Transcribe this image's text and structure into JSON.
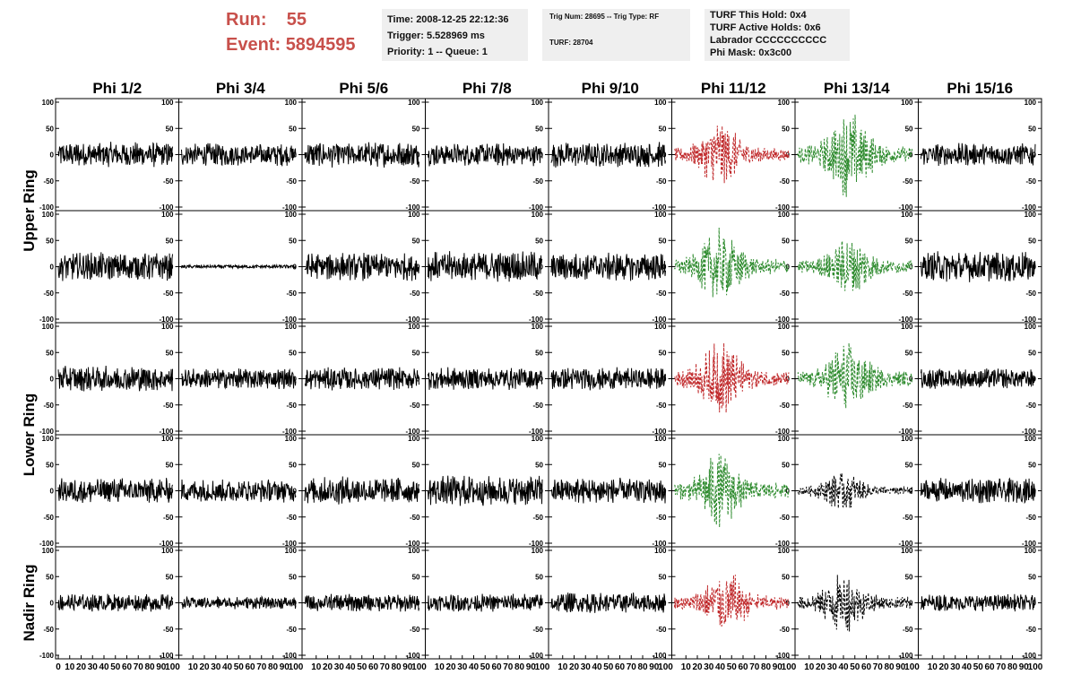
{
  "header": {
    "run_label": "Run:",
    "run_value": "55",
    "event_label": "Event:",
    "event_value": "5894595",
    "time": "Time: 2008-12-25 22:12:36",
    "trigger": "Trigger: 5.528969 ms",
    "priority": "Priority: 1 -- Queue: 1",
    "trig_num": "Trig Num: 28695 -- Trig Type: RF",
    "turf": "TURF: 28704",
    "turf_this_hold": "TURF This Hold: 0x4",
    "turf_active_holds": "TURF Active Holds: 0x6",
    "labrador": "Labrador CCCCCCCCCC",
    "phi_mask": "Phi Mask: 0x3c00"
  },
  "colors": {
    "header_text": "#c8504b",
    "panel_bg": "#efefef",
    "trace_default": "#000000",
    "trace_red": "#c0282a",
    "trace_green": "#2e8b2e"
  },
  "chart_data": {
    "type": "line",
    "columns": [
      "Phi 1/2",
      "Phi 3/4",
      "Phi 5/6",
      "Phi 7/8",
      "Phi 9/10",
      "Phi 11/12",
      "Phi 13/14",
      "Phi 15/16"
    ],
    "rows": [
      "Upper Ring",
      "Lower Ring",
      "Nadir Ring"
    ],
    "ylim": [
      -100,
      100
    ],
    "xlim": [
      0,
      100
    ],
    "yticks": [
      "100",
      "50",
      "0",
      "-50",
      "-100"
    ],
    "xticks": [
      "0",
      "10",
      "20",
      "30",
      "40",
      "50",
      "60",
      "70",
      "80",
      "90",
      "100"
    ],
    "panels": [
      {
        "row": 0,
        "col": 0,
        "color": "black",
        "amp": 20
      },
      {
        "row": 0,
        "col": 1,
        "color": "black",
        "amp": 18
      },
      {
        "row": 0,
        "col": 2,
        "color": "black",
        "amp": 20
      },
      {
        "row": 0,
        "col": 3,
        "color": "black",
        "amp": 18
      },
      {
        "row": 0,
        "col": 4,
        "color": "black",
        "amp": 20
      },
      {
        "row": 0,
        "col": 5,
        "color": "red",
        "amp": 30,
        "dashed": true,
        "burst": 40
      },
      {
        "row": 0,
        "col": 6,
        "color": "green",
        "amp": 40,
        "dashed": true,
        "burst": 45
      },
      {
        "row": 0,
        "col": 7,
        "color": "black",
        "amp": 18
      },
      {
        "row": 1,
        "col": 0,
        "color": "black",
        "amp": 22
      },
      {
        "row": 1,
        "col": 1,
        "color": "black",
        "amp": 3
      },
      {
        "row": 1,
        "col": 2,
        "color": "black",
        "amp": 22
      },
      {
        "row": 1,
        "col": 3,
        "color": "black",
        "amp": 24
      },
      {
        "row": 1,
        "col": 4,
        "color": "black",
        "amp": 22
      },
      {
        "row": 1,
        "col": 5,
        "color": "green",
        "amp": 35,
        "dashed": true,
        "burst": 40
      },
      {
        "row": 1,
        "col": 6,
        "color": "green",
        "amp": 28,
        "dashed": true,
        "burst": 45
      },
      {
        "row": 1,
        "col": 7,
        "color": "black",
        "amp": 24
      },
      {
        "row": 2,
        "col": 0,
        "color": "black",
        "amp": 20
      },
      {
        "row": 2,
        "col": 1,
        "color": "black",
        "amp": 16
      },
      {
        "row": 2,
        "col": 2,
        "color": "black",
        "amp": 18
      },
      {
        "row": 2,
        "col": 3,
        "color": "black",
        "amp": 18
      },
      {
        "row": 2,
        "col": 4,
        "color": "black",
        "amp": 18
      },
      {
        "row": 2,
        "col": 5,
        "color": "red",
        "amp": 35,
        "dashed": true,
        "burst": 40
      },
      {
        "row": 2,
        "col": 6,
        "color": "green",
        "amp": 35,
        "dashed": true,
        "burst": 45
      },
      {
        "row": 2,
        "col": 7,
        "color": "black",
        "amp": 16
      },
      {
        "row": 3,
        "col": 0,
        "color": "black",
        "amp": 20
      },
      {
        "row": 3,
        "col": 1,
        "color": "black",
        "amp": 18
      },
      {
        "row": 3,
        "col": 2,
        "color": "black",
        "amp": 22
      },
      {
        "row": 3,
        "col": 3,
        "color": "black",
        "amp": 24
      },
      {
        "row": 3,
        "col": 4,
        "color": "black",
        "amp": 20
      },
      {
        "row": 3,
        "col": 5,
        "color": "green",
        "amp": 35,
        "dashed": true,
        "burst": 40
      },
      {
        "row": 3,
        "col": 6,
        "color": "black",
        "amp": 18,
        "dashed": true,
        "burst": 40
      },
      {
        "row": 3,
        "col": 7,
        "color": "black",
        "amp": 20
      },
      {
        "row": 4,
        "col": 0,
        "color": "black",
        "amp": 14
      },
      {
        "row": 4,
        "col": 1,
        "color": "black",
        "amp": 10
      },
      {
        "row": 4,
        "col": 2,
        "color": "black",
        "amp": 14
      },
      {
        "row": 4,
        "col": 3,
        "color": "black",
        "amp": 14
      },
      {
        "row": 4,
        "col": 4,
        "color": "black",
        "amp": 16
      },
      {
        "row": 4,
        "col": 5,
        "color": "red",
        "amp": 30,
        "dashed": true,
        "burst": 45
      },
      {
        "row": 4,
        "col": 6,
        "color": "black",
        "amp": 28,
        "dashed": true,
        "burst": 40
      },
      {
        "row": 4,
        "col": 7,
        "color": "black",
        "amp": 14
      }
    ]
  }
}
